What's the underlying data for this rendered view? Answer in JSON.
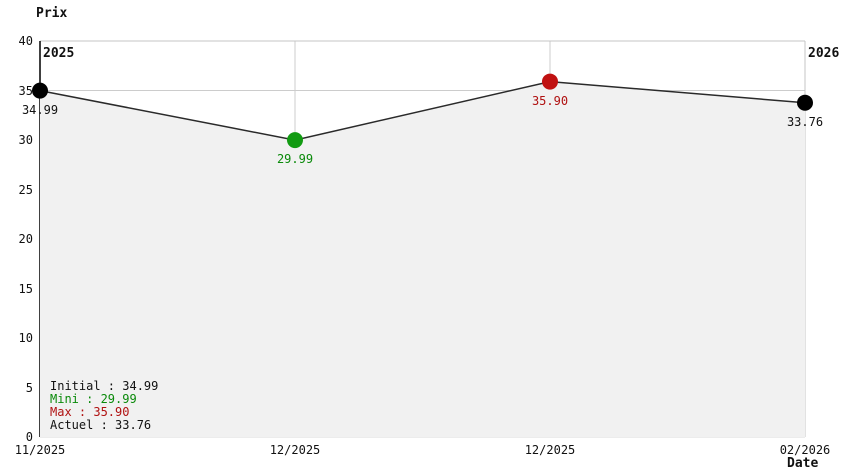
{
  "chart_data": {
    "type": "line",
    "title": "",
    "ylabel": "Prix",
    "xlabel": "Date",
    "ylim": [
      0,
      40
    ],
    "y_ticks": [
      40,
      35,
      30,
      25,
      20,
      15,
      10,
      5,
      0
    ],
    "grid": true,
    "x": [
      "11/2025",
      "12/2025",
      "12/2025",
      "02/2026"
    ],
    "series": [
      {
        "name": "Prix",
        "values": [
          34.99,
          29.99,
          35.9,
          33.76
        ]
      }
    ],
    "points": [
      {
        "x_label": "11/2025",
        "value": 34.99,
        "display": "34.99",
        "role": "initial",
        "color": "#000000",
        "label_color": "#111111"
      },
      {
        "x_label": "12/2025",
        "value": 29.99,
        "display": "29.99",
        "role": "mini",
        "color": "#129b12",
        "label_color": "#0a8a0a"
      },
      {
        "x_label": "12/2025",
        "value": 35.9,
        "display": "35.90",
        "role": "max",
        "color": "#c01111",
        "label_color": "#b01111"
      },
      {
        "x_label": "02/2026",
        "value": 33.76,
        "display": "33.76",
        "role": "actuel",
        "color": "#000000",
        "label_color": "#111111"
      }
    ],
    "period_labels": [
      "2025",
      "2026"
    ],
    "legend_position": "bottom-left",
    "legend": [
      {
        "label": "Initial : 34.99",
        "color": "#111111"
      },
      {
        "label": "Mini : 29.99",
        "color": "#0a8a0a"
      },
      {
        "label": "Max : 35.90",
        "color": "#b01111"
      },
      {
        "label": "Actuel : 33.76",
        "color": "#111111"
      }
    ],
    "colors": {
      "line": "#2a2a2a",
      "area_fill": "#f1f1f1",
      "gridline": "#cccccc",
      "plot_border": "#c4c4c4",
      "bottom_border": "#d9d9d9",
      "y_axis": "#000000",
      "background": "#ffffff"
    }
  }
}
